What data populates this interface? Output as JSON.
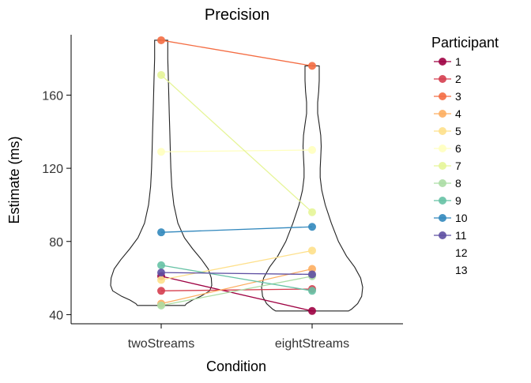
{
  "chart_data": {
    "type": "violin+slope",
    "title": "Precision",
    "xlabel": "Condition",
    "ylabel": "Estimate (ms)",
    "categories": [
      "twoStreams",
      "eightStreams"
    ],
    "y_ticks": [
      40,
      80,
      120,
      160
    ],
    "ylim": [
      35,
      193
    ],
    "grid": false,
    "legend": {
      "title": "Participant",
      "placement": "right"
    },
    "violins": [
      {
        "category": "twoStreams",
        "y_min": 45,
        "y_max": 190,
        "profile": [
          [
            45,
            0.47
          ],
          [
            46,
            0.5
          ],
          [
            48,
            0.62
          ],
          [
            50,
            0.78
          ],
          [
            53,
            0.96
          ],
          [
            56,
            1.0
          ],
          [
            60,
            0.99
          ],
          [
            65,
            0.93
          ],
          [
            70,
            0.8
          ],
          [
            76,
            0.62
          ],
          [
            82,
            0.46
          ],
          [
            90,
            0.33
          ],
          [
            100,
            0.25
          ],
          [
            110,
            0.21
          ],
          [
            120,
            0.19
          ],
          [
            130,
            0.18
          ],
          [
            140,
            0.17
          ],
          [
            150,
            0.16
          ],
          [
            160,
            0.15
          ],
          [
            170,
            0.14
          ],
          [
            180,
            0.13
          ],
          [
            186,
            0.13
          ],
          [
            189,
            0.13
          ],
          [
            190,
            0.13
          ]
        ]
      },
      {
        "category": "eightStreams",
        "y_min": 42,
        "y_max": 176,
        "profile": [
          [
            42,
            0.72
          ],
          [
            43,
            0.78
          ],
          [
            46,
            0.9
          ],
          [
            50,
            0.98
          ],
          [
            55,
            1.0
          ],
          [
            60,
            0.96
          ],
          [
            66,
            0.84
          ],
          [
            72,
            0.68
          ],
          [
            80,
            0.52
          ],
          [
            90,
            0.38
          ],
          [
            100,
            0.26
          ],
          [
            108,
            0.19
          ],
          [
            115,
            0.16
          ],
          [
            120,
            0.16
          ],
          [
            126,
            0.17
          ],
          [
            132,
            0.18
          ],
          [
            138,
            0.17
          ],
          [
            144,
            0.14
          ],
          [
            150,
            0.11
          ],
          [
            156,
            0.11
          ],
          [
            162,
            0.13
          ],
          [
            168,
            0.14
          ],
          [
            172,
            0.14
          ],
          [
            176,
            0.14
          ]
        ]
      }
    ],
    "series": [
      {
        "name": "1",
        "color": "#9e0142",
        "values": [
          61,
          42
        ]
      },
      {
        "name": "2",
        "color": "#d53e4f",
        "values": [
          53,
          54
        ]
      },
      {
        "name": "3",
        "color": "#f46d43",
        "values": [
          190,
          176
        ]
      },
      {
        "name": "4",
        "color": "#fdae61",
        "values": [
          46,
          65
        ]
      },
      {
        "name": "5",
        "color": "#fee08b",
        "values": [
          59,
          75
        ]
      },
      {
        "name": "6",
        "color": "#ffffbf",
        "values": [
          129,
          130
        ]
      },
      {
        "name": "7",
        "color": "#e6f598",
        "values": [
          171,
          96
        ]
      },
      {
        "name": "8",
        "color": "#abdda4",
        "values": [
          45,
          61
        ]
      },
      {
        "name": "9",
        "color": "#66c2a5",
        "values": [
          67,
          53
        ]
      },
      {
        "name": "10",
        "color": "#3288bd",
        "values": [
          85,
          88
        ]
      },
      {
        "name": "11",
        "color": "#5e4fa2",
        "values": [
          63,
          62
        ]
      },
      {
        "name": "12",
        "color": "",
        "values": []
      },
      {
        "name": "13",
        "color": "",
        "values": []
      }
    ]
  }
}
